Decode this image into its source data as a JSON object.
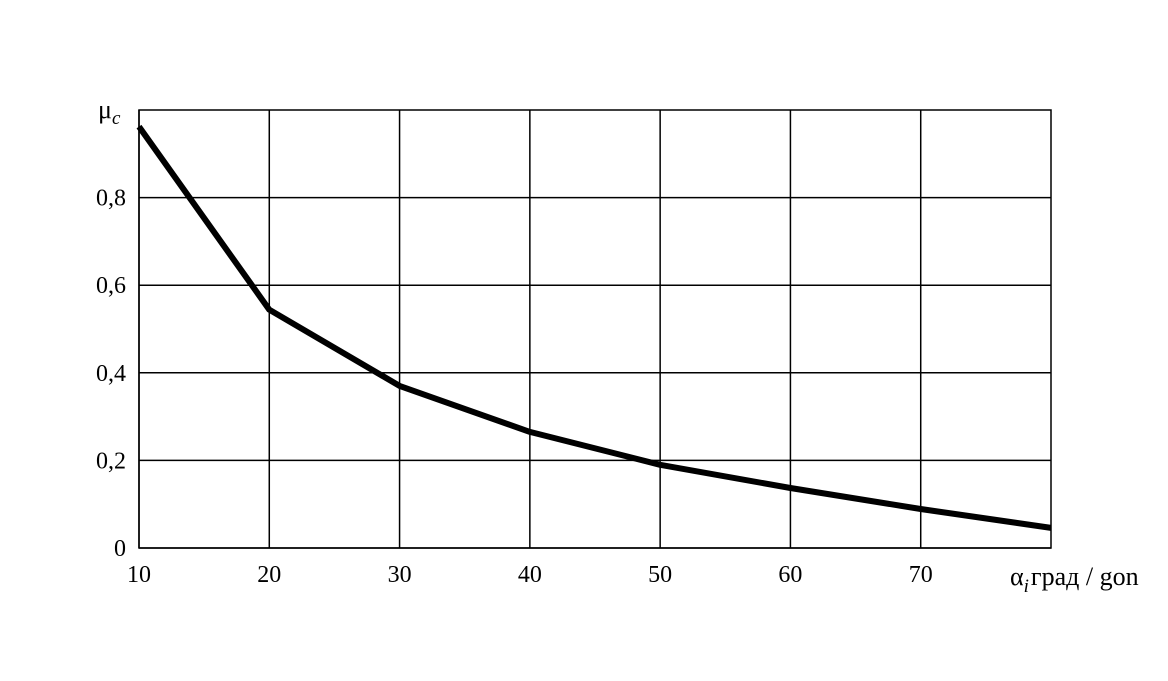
{
  "chart_data": {
    "type": "line",
    "title": "",
    "ylabel": "μ",
    "ylabel_sub": "c",
    "xlabel": "α",
    "xlabel_sub": "i",
    "xlabel_unit": "град / gon",
    "xlim": [
      10,
      80
    ],
    "ylim": [
      0,
      1.0
    ],
    "grid": true,
    "x_ticks": [
      10,
      20,
      30,
      40,
      50,
      60,
      70
    ],
    "x_tick_labels": [
      "10",
      "20",
      "30",
      "40",
      "50",
      "60",
      "70"
    ],
    "y_ticks": [
      0,
      0.2,
      0.4,
      0.6,
      0.8
    ],
    "y_tick_labels": [
      "0",
      "0,2",
      "0,4",
      "0,6",
      "0,8"
    ],
    "series": [
      {
        "x": [
          10,
          20,
          30,
          40,
          50,
          60,
          70,
          80
        ],
        "y": [
          0.962,
          0.544,
          0.37,
          0.265,
          0.19,
          0.137,
          0.089,
          0.046
        ],
        "color": "#000000"
      }
    ]
  }
}
